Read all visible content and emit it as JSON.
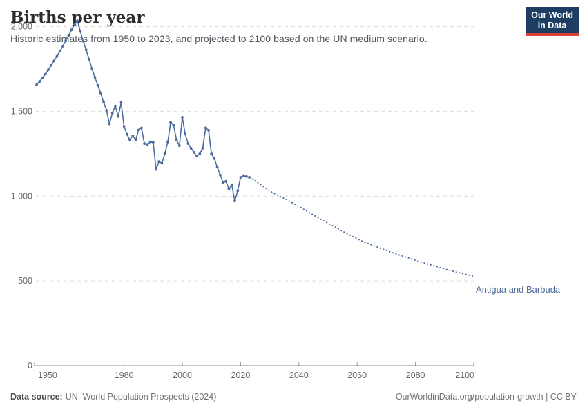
{
  "header": {
    "title": "Births per year",
    "subtitle": "Historic estimates from 1950 to 2023, and projected to 2100 based on the UN medium scenario."
  },
  "logo": {
    "line1": "Our World",
    "line2": "in Data"
  },
  "chart_data": {
    "type": "line",
    "title": "Births per year",
    "entity_label": "Antigua and Barbuda",
    "xlabel": "",
    "ylabel": "",
    "xlim": [
      1950,
      2100
    ],
    "ylim": [
      0,
      2100
    ],
    "grid": true,
    "x_ticks": [
      1950,
      1980,
      2000,
      2020,
      2040,
      2060,
      2080,
      2100
    ],
    "y_ticks": [
      0,
      500,
      1000,
      1500,
      2000
    ],
    "legend_position": "right-of-line-end",
    "series": [
      {
        "name": "historic",
        "style": "solid",
        "markers": true,
        "points": [
          [
            1950,
            1657
          ],
          [
            1951,
            1676
          ],
          [
            1952,
            1697
          ],
          [
            1953,
            1720
          ],
          [
            1954,
            1745
          ],
          [
            1955,
            1771
          ],
          [
            1956,
            1798
          ],
          [
            1957,
            1826
          ],
          [
            1958,
            1855
          ],
          [
            1959,
            1885
          ],
          [
            1960,
            1916
          ],
          [
            1961,
            1948
          ],
          [
            1962,
            1981
          ],
          [
            1963,
            2012
          ],
          [
            1964,
            2034
          ],
          [
            1965,
            1972
          ],
          [
            1966,
            1914
          ],
          [
            1967,
            1863
          ],
          [
            1968,
            1807
          ],
          [
            1969,
            1752
          ],
          [
            1970,
            1701
          ],
          [
            1971,
            1654
          ],
          [
            1972,
            1608
          ],
          [
            1973,
            1553
          ],
          [
            1974,
            1506
          ],
          [
            1975,
            1426
          ],
          [
            1976,
            1490
          ],
          [
            1977,
            1532
          ],
          [
            1978,
            1470
          ],
          [
            1979,
            1552
          ],
          [
            1980,
            1412
          ],
          [
            1981,
            1365
          ],
          [
            1982,
            1333
          ],
          [
            1983,
            1356
          ],
          [
            1984,
            1333
          ],
          [
            1985,
            1390
          ],
          [
            1986,
            1402
          ],
          [
            1987,
            1310
          ],
          [
            1988,
            1305
          ],
          [
            1989,
            1320
          ],
          [
            1990,
            1318
          ],
          [
            1991,
            1158
          ],
          [
            1992,
            1204
          ],
          [
            1993,
            1195
          ],
          [
            1994,
            1250
          ],
          [
            1995,
            1320
          ],
          [
            1996,
            1435
          ],
          [
            1997,
            1420
          ],
          [
            1998,
            1332
          ],
          [
            1999,
            1298
          ],
          [
            2000,
            1465
          ],
          [
            2001,
            1366
          ],
          [
            2002,
            1310
          ],
          [
            2003,
            1282
          ],
          [
            2004,
            1258
          ],
          [
            2005,
            1236
          ],
          [
            2006,
            1250
          ],
          [
            2007,
            1282
          ],
          [
            2008,
            1403
          ],
          [
            2009,
            1388
          ],
          [
            2010,
            1250
          ],
          [
            2011,
            1222
          ],
          [
            2012,
            1171
          ],
          [
            2013,
            1125
          ],
          [
            2014,
            1079
          ],
          [
            2015,
            1088
          ],
          [
            2016,
            1042
          ],
          [
            2017,
            1065
          ],
          [
            2018,
            972
          ],
          [
            2019,
            1033
          ],
          [
            2020,
            1111
          ],
          [
            2021,
            1121
          ],
          [
            2022,
            1116
          ],
          [
            2023,
            1111
          ]
        ]
      },
      {
        "name": "projection-un-medium",
        "style": "dotted",
        "markers": false,
        "points": [
          [
            2023,
            1111
          ],
          [
            2025,
            1090
          ],
          [
            2027,
            1067
          ],
          [
            2029,
            1043
          ],
          [
            2031,
            1021
          ],
          [
            2033,
            1003
          ],
          [
            2035,
            986
          ],
          [
            2037,
            968
          ],
          [
            2039,
            949
          ],
          [
            2041,
            929
          ],
          [
            2043,
            909
          ],
          [
            2045,
            889
          ],
          [
            2047,
            869
          ],
          [
            2049,
            850
          ],
          [
            2051,
            831
          ],
          [
            2053,
            812
          ],
          [
            2055,
            793
          ],
          [
            2057,
            775
          ],
          [
            2059,
            757
          ],
          [
            2061,
            740
          ],
          [
            2063,
            726
          ],
          [
            2065,
            712
          ],
          [
            2067,
            699
          ],
          [
            2069,
            686
          ],
          [
            2071,
            674
          ],
          [
            2073,
            662
          ],
          [
            2075,
            650
          ],
          [
            2077,
            639
          ],
          [
            2079,
            628
          ],
          [
            2081,
            617
          ],
          [
            2083,
            606
          ],
          [
            2085,
            596
          ],
          [
            2087,
            586
          ],
          [
            2089,
            576
          ],
          [
            2091,
            566
          ],
          [
            2093,
            557
          ],
          [
            2095,
            548
          ],
          [
            2097,
            540
          ],
          [
            2099,
            532
          ],
          [
            2100,
            528
          ]
        ]
      }
    ]
  },
  "footer": {
    "source_label": "Data source:",
    "source_value": "UN, World Population Prospects (2024)",
    "right_text": "OurWorldinData.org/population-growth | CC BY"
  },
  "colors": {
    "line": "#4c6a9c",
    "entity_label": "#4c6a9c",
    "grid": "#dcdcdc",
    "axis": "#8f8f8f",
    "tick_label": "#666666",
    "title": "#2d2d2d",
    "subtitle": "#4e555c",
    "logo_bg": "#1d3d63",
    "logo_red": "#dc3e32"
  }
}
